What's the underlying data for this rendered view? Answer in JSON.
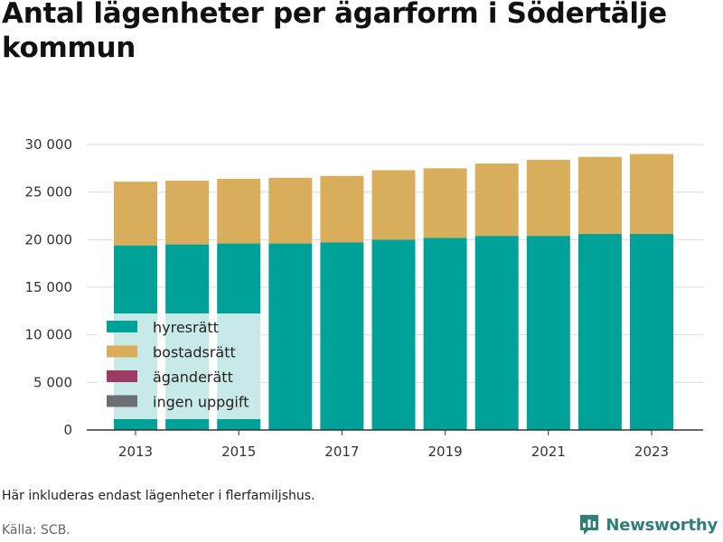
{
  "title": "Antal lägenheter per ägarform i Södertälje kommun",
  "note": "Här inkluderas endast lägenheter i flerfamiljshus.",
  "source": "Källa: SCB.",
  "brand": "Newsworthy",
  "colors": {
    "hyresratt": "#00a199",
    "bostadsratt": "#d8ad5b",
    "aganderatt": "#9b3a62",
    "ingen_uppgift": "#6b6e72",
    "grid": "#d9d9d9",
    "axis": "#333333",
    "brand": "#2f7f76"
  },
  "chart_data": {
    "type": "bar",
    "stacked": true,
    "x": [
      2013,
      2014,
      2015,
      2016,
      2017,
      2018,
      2019,
      2020,
      2021,
      2022,
      2023
    ],
    "x_tick_labels": [
      "2013",
      "2015",
      "2017",
      "2019",
      "2021",
      "2023"
    ],
    "y_tick_labels": [
      "0",
      "5 000",
      "10 000",
      "15 000",
      "20 000",
      "25 000",
      "30 000"
    ],
    "ylim": [
      0,
      30000
    ],
    "grid": true,
    "legend_position": "bottom-left inside plot",
    "series": [
      {
        "name": "hyresrätt",
        "values": [
          19400,
          19500,
          19600,
          19600,
          19700,
          20000,
          20200,
          20400,
          20400,
          20600,
          20600
        ]
      },
      {
        "name": "bostadsrätt",
        "values": [
          6700,
          6700,
          6800,
          6900,
          7000,
          7300,
          7300,
          7600,
          8000,
          8100,
          8400
        ]
      },
      {
        "name": "äganderätt",
        "values": [
          0,
          0,
          0,
          0,
          0,
          0,
          0,
          0,
          0,
          0,
          0
        ]
      },
      {
        "name": "ingen uppgift",
        "values": [
          0,
          0,
          0,
          0,
          0,
          0,
          0,
          0,
          0,
          0,
          0
        ]
      }
    ]
  }
}
